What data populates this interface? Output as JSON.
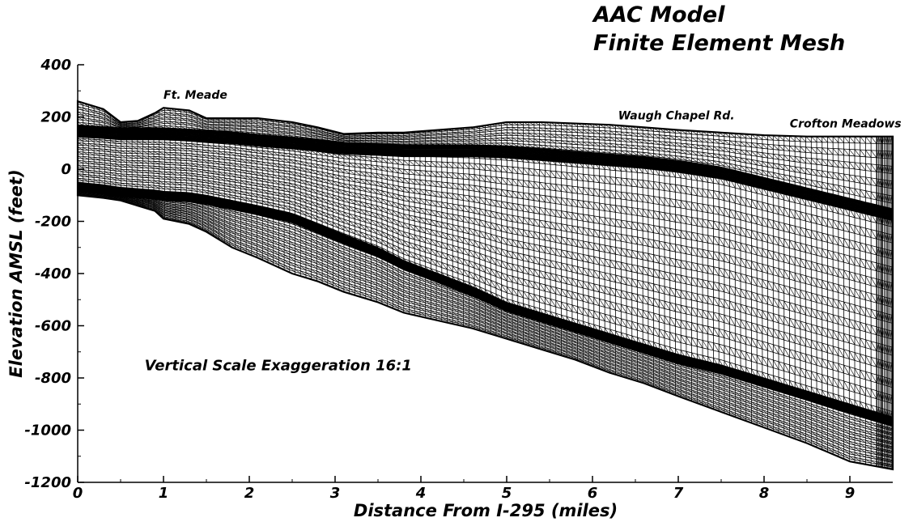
{
  "chart_data": {
    "type": "mesh",
    "title_lines": [
      "AAC Model",
      "Finite Element Mesh"
    ],
    "xlabel": "Distance From I-295 (miles)",
    "ylabel": "Elevation AMSL (feet)",
    "xlim": [
      0,
      9.5
    ],
    "ylim": [
      -1200,
      400
    ],
    "x_ticks": [
      0,
      1,
      2,
      3,
      4,
      5,
      6,
      7,
      8,
      9
    ],
    "y_ticks": [
      400,
      200,
      0,
      -200,
      -400,
      -600,
      -800,
      -1000,
      -1200
    ],
    "annotations": [
      {
        "text": "Ft. Meade",
        "x": 1.0,
        "y": 270
      },
      {
        "text": "Waugh Chapel Rd.",
        "x": 6.3,
        "y": 190
      },
      {
        "text": "Crofton Meadows",
        "x": 8.3,
        "y": 160
      },
      {
        "text": "Vertical Scale Exaggeration 16:1",
        "x": 0.78,
        "y": -770
      }
    ],
    "surfaces": {
      "x": [
        0,
        0.3,
        0.5,
        0.7,
        0.9,
        1.0,
        1.3,
        1.5,
        1.8,
        2.1,
        2.5,
        2.8,
        3.1,
        3.5,
        3.8,
        4.2,
        4.6,
        5.0,
        5.4,
        5.8,
        6.2,
        6.6,
        7.0,
        7.5,
        8.0,
        8.5,
        9.0,
        9.5
      ],
      "top": [
        260,
        230,
        180,
        185,
        215,
        235,
        225,
        195,
        195,
        195,
        180,
        160,
        135,
        140,
        140,
        150,
        160,
        180,
        180,
        175,
        170,
        160,
        150,
        140,
        130,
        125,
        125,
        125
      ],
      "dense_upper": [
        160,
        155,
        150,
        150,
        150,
        150,
        145,
        140,
        135,
        125,
        115,
        105,
        95,
        90,
        85,
        85,
        85,
        80,
        70,
        60,
        50,
        40,
        25,
        0,
        -40,
        -80,
        -120,
        -160
      ],
      "mid": [
        -60,
        -70,
        -80,
        -85,
        -90,
        -95,
        -100,
        -110,
        -130,
        -150,
        -180,
        -220,
        -260,
        -310,
        -360,
        -410,
        -460,
        -520,
        -560,
        -600,
        -640,
        -680,
        -720,
        -760,
        -810,
        -860,
        -910,
        -960
      ],
      "bottom": [
        -100,
        -110,
        -120,
        -140,
        -160,
        -190,
        -210,
        -240,
        -300,
        -340,
        -400,
        -430,
        -470,
        -510,
        -550,
        -580,
        -610,
        -650,
        -690,
        -730,
        -780,
        -820,
        -870,
        -930,
        -990,
        -1050,
        -1120,
        -1150
      ]
    }
  }
}
